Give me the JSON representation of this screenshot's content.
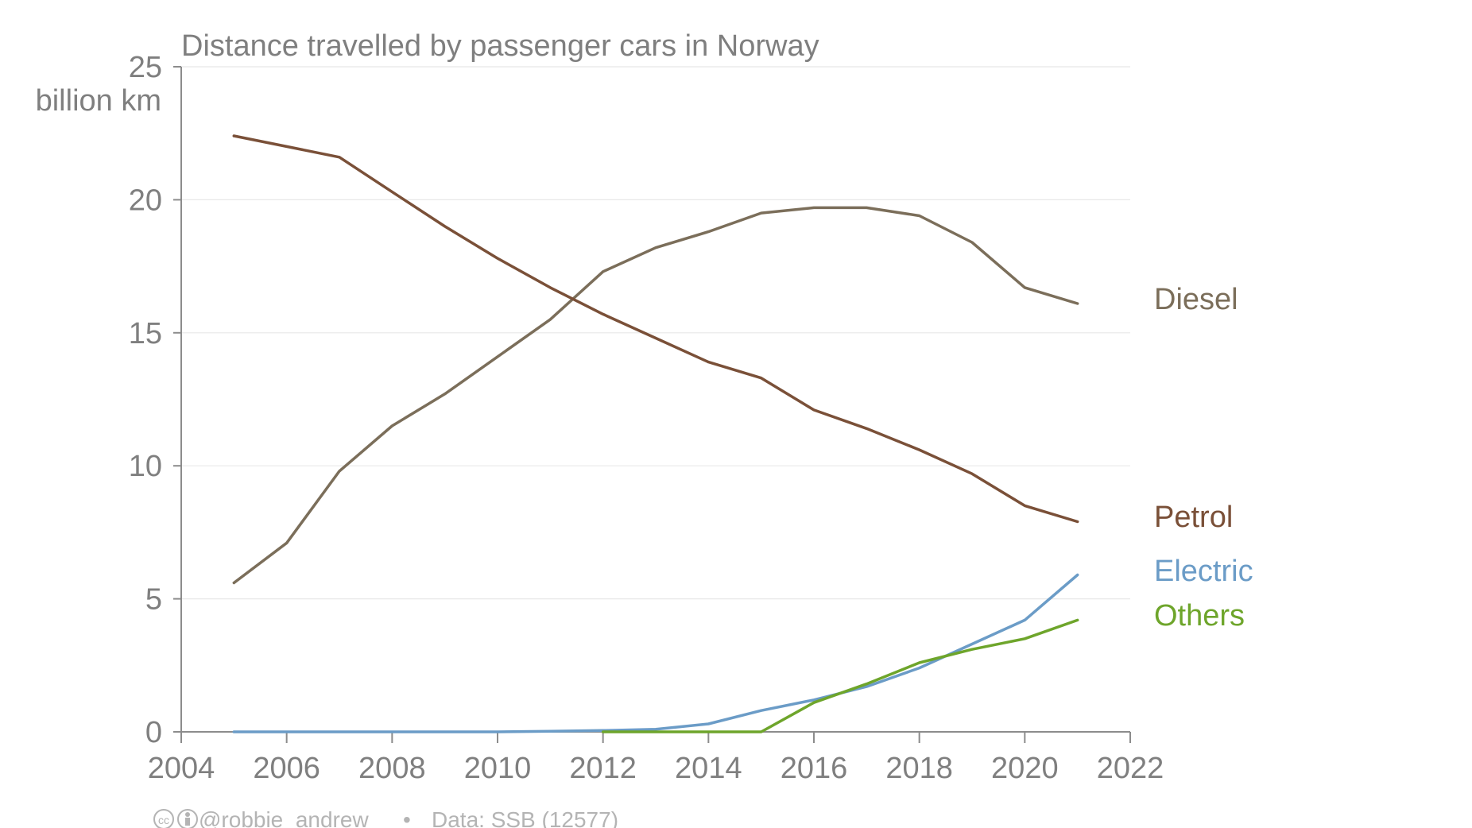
{
  "chart_data": {
    "type": "line",
    "title": "Distance travelled by passenger cars in Norway",
    "ylabel": "billion km",
    "xlabel": "",
    "xlim": [
      2004,
      2022
    ],
    "ylim": [
      0,
      25
    ],
    "xticks": [
      2004,
      2006,
      2008,
      2010,
      2012,
      2014,
      2016,
      2018,
      2020,
      2022
    ],
    "yticks": [
      0,
      5,
      10,
      15,
      20,
      25
    ],
    "grid": "horizontal",
    "legend": "direct labels at right end of lines",
    "x": [
      2005,
      2006,
      2007,
      2008,
      2009,
      2010,
      2011,
      2012,
      2013,
      2014,
      2015,
      2016,
      2017,
      2018,
      2019,
      2020,
      2021
    ],
    "series": [
      {
        "name": "Diesel",
        "color": "#7b6e5a",
        "values": [
          5.6,
          7.1,
          9.8,
          11.5,
          12.7,
          14.1,
          15.5,
          17.3,
          18.2,
          18.8,
          19.5,
          19.7,
          19.7,
          19.4,
          18.4,
          16.7,
          16.1
        ]
      },
      {
        "name": "Petrol",
        "color": "#7a5038",
        "values": [
          22.4,
          22.0,
          21.6,
          20.3,
          19.0,
          17.8,
          16.7,
          15.7,
          14.8,
          13.9,
          13.3,
          12.1,
          11.4,
          10.6,
          9.7,
          8.5,
          7.9
        ]
      },
      {
        "name": "Electric",
        "color": "#6b9cc7",
        "values": [
          0.0,
          0.0,
          0.0,
          0.0,
          0.0,
          0.0,
          0.02,
          0.05,
          0.1,
          0.3,
          0.8,
          1.2,
          1.7,
          2.4,
          3.3,
          4.2,
          5.9
        ]
      },
      {
        "name": "Others",
        "color": "#6ea52b",
        "values": [
          null,
          null,
          null,
          null,
          null,
          null,
          null,
          0.0,
          0.0,
          0.0,
          0.0,
          1.1,
          1.8,
          2.6,
          3.1,
          3.5,
          4.2
        ]
      }
    ],
    "label_positions_note": "series names printed at right end of lines"
  },
  "footer": {
    "author": "@robbie_andrew",
    "source": "Data: SSB (12577)",
    "separator": "•"
  }
}
